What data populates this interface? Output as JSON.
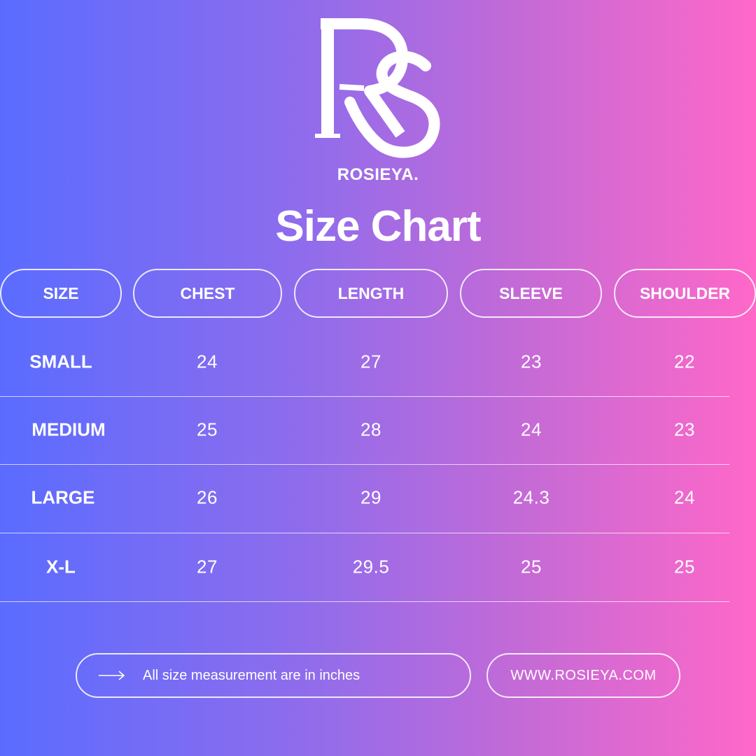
{
  "brand": {
    "logo_monogram": "RS",
    "name": "ROSIEYA."
  },
  "title": "Size Chart",
  "table": {
    "headers": [
      "SIZE",
      "CHEST",
      "LENGTH",
      "SLEEVE",
      "SHOULDER"
    ],
    "rows": [
      {
        "size": "SMALL",
        "chest": "24",
        "length": "27",
        "sleeve": "23",
        "shoulder": "22"
      },
      {
        "size": "MEDIUM",
        "chest": "25",
        "length": "28",
        "sleeve": "24",
        "shoulder": "23"
      },
      {
        "size": "LARGE",
        "chest": "26",
        "length": "29",
        "sleeve": "24.3",
        "shoulder": "24"
      },
      {
        "size": "X-L",
        "chest": "27",
        "length": "29.5",
        "sleeve": "25",
        "shoulder": "25"
      }
    ]
  },
  "footer": {
    "note_icon": "arrow-right-icon",
    "note": "All size measurement are in inches",
    "url": "WWW.ROSIEYA.COM"
  },
  "colors": {
    "gradient_start": "#5a6cff",
    "gradient_end": "#ff68c8",
    "text": "#ffffff"
  }
}
